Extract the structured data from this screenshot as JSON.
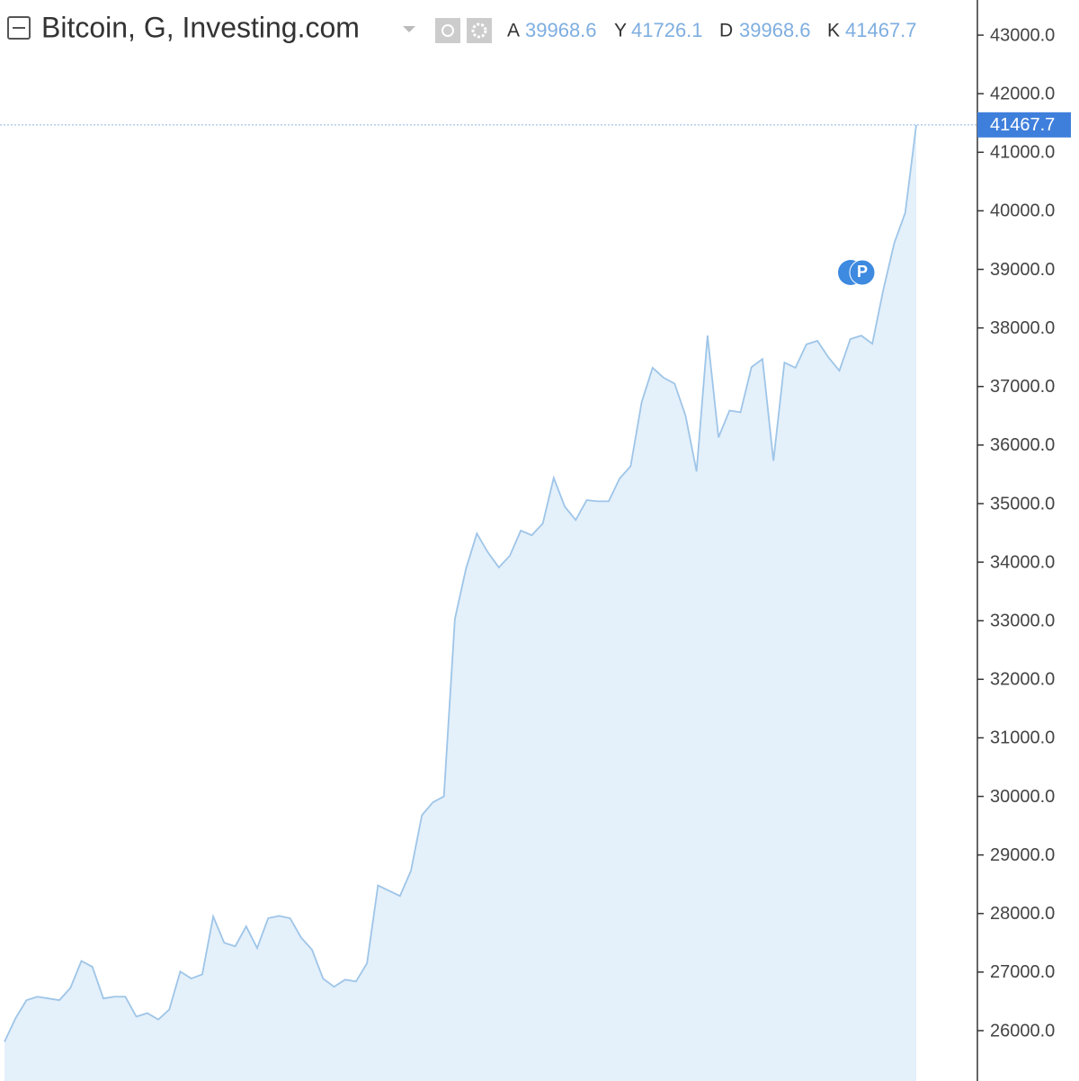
{
  "chart_data": {
    "type": "area",
    "title": "Bitcoin, G, Investing.com",
    "ohlc": [
      {
        "label": "A",
        "value": 39968.6
      },
      {
        "label": "Y",
        "value": 41726.1
      },
      {
        "label": "D",
        "value": 39968.6
      },
      {
        "label": "K",
        "value": 41467.7
      }
    ],
    "last_price": 41467.7,
    "marker": "P",
    "color": "#9ec5e8",
    "fill": "#e4f0fa",
    "values": [
      25810,
      26210,
      26520,
      26580,
      26550,
      26520,
      26730,
      27190,
      27090,
      26550,
      26580,
      26580,
      26240,
      26300,
      26190,
      26360,
      27010,
      26890,
      26960,
      27950,
      27500,
      27440,
      27780,
      27410,
      27920,
      27960,
      27920,
      27590,
      27380,
      26890,
      26750,
      26870,
      26840,
      27150,
      28480,
      28390,
      28300,
      28730,
      29680,
      29900,
      30000,
      33030,
      33880,
      34490,
      34170,
      33910,
      34110,
      34540,
      34460,
      34660,
      35440,
      34950,
      34720,
      35060,
      35040,
      35040,
      35430,
      35640,
      36730,
      37320,
      37150,
      37050,
      36500,
      35550,
      37870,
      36130,
      36590,
      36560,
      37330,
      37470,
      35730,
      37410,
      37320,
      37720,
      37780,
      37500,
      37270,
      37810,
      37870,
      37730,
      38650,
      39450,
      39968.6,
      41467.7
    ],
    "ylim": [
      25140,
      43600
    ],
    "yticks": [
      {
        "value": 26000,
        "label": "26000.0"
      },
      {
        "value": 27000,
        "label": "27000.0"
      },
      {
        "value": 28000,
        "label": "28000.0"
      },
      {
        "value": 29000,
        "label": "29000.0"
      },
      {
        "value": 30000,
        "label": "30000.0"
      },
      {
        "value": 31000,
        "label": "31000.0"
      },
      {
        "value": 32000,
        "label": "32000.0"
      },
      {
        "value": 33000,
        "label": "33000.0"
      },
      {
        "value": 34000,
        "label": "34000.0"
      },
      {
        "value": 35000,
        "label": "35000.0"
      },
      {
        "value": 36000,
        "label": "36000.0"
      },
      {
        "value": 37000,
        "label": "37000.0"
      },
      {
        "value": 38000,
        "label": "38000.0"
      },
      {
        "value": 39000,
        "label": "39000.0"
      },
      {
        "value": 40000,
        "label": "40000.0"
      },
      {
        "value": 41000,
        "label": "41000.0"
      },
      {
        "value": 42000,
        "label": "42000.0"
      },
      {
        "value": 43000,
        "label": "43000.0"
      }
    ]
  }
}
